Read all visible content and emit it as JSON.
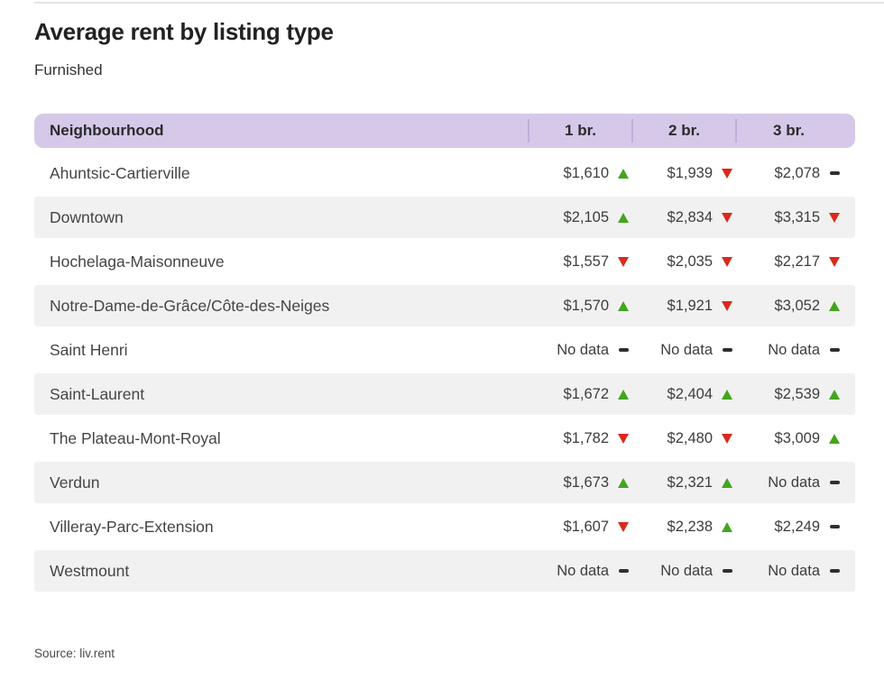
{
  "chart_data": {
    "type": "table",
    "title": "Average rent by listing type",
    "subtitle": "Furnished",
    "columns": [
      "Neighbourhood",
      "1 br.",
      "2 br.",
      "3 br."
    ],
    "rows": [
      {
        "name": "Ahuntsic-Cartierville",
        "cells": [
          {
            "text": "$1,610",
            "value": 1610,
            "trend": "up"
          },
          {
            "text": "$1,939",
            "value": 1939,
            "trend": "down"
          },
          {
            "text": "$2,078",
            "value": 2078,
            "trend": "flat"
          }
        ]
      },
      {
        "name": "Downtown",
        "cells": [
          {
            "text": "$2,105",
            "value": 2105,
            "trend": "up"
          },
          {
            "text": "$2,834",
            "value": 2834,
            "trend": "down"
          },
          {
            "text": "$3,315",
            "value": 3315,
            "trend": "down"
          }
        ]
      },
      {
        "name": "Hochelaga-Maisonneuve",
        "cells": [
          {
            "text": "$1,557",
            "value": 1557,
            "trend": "down"
          },
          {
            "text": "$2,035",
            "value": 2035,
            "trend": "down"
          },
          {
            "text": "$2,217",
            "value": 2217,
            "trend": "down"
          }
        ]
      },
      {
        "name": "Notre-Dame-de-Grâce/Côte-des-Neiges",
        "cells": [
          {
            "text": "$1,570",
            "value": 1570,
            "trend": "up"
          },
          {
            "text": "$1,921",
            "value": 1921,
            "trend": "down"
          },
          {
            "text": "$3,052",
            "value": 3052,
            "trend": "up"
          }
        ]
      },
      {
        "name": "Saint Henri",
        "cells": [
          {
            "text": "No data",
            "value": null,
            "trend": "flat"
          },
          {
            "text": "No data",
            "value": null,
            "trend": "flat"
          },
          {
            "text": "No data",
            "value": null,
            "trend": "flat"
          }
        ]
      },
      {
        "name": "Saint-Laurent",
        "cells": [
          {
            "text": "$1,672",
            "value": 1672,
            "trend": "up"
          },
          {
            "text": "$2,404",
            "value": 2404,
            "trend": "up"
          },
          {
            "text": "$2,539",
            "value": 2539,
            "trend": "up"
          }
        ]
      },
      {
        "name": "The Plateau-Mont-Royal",
        "cells": [
          {
            "text": "$1,782",
            "value": 1782,
            "trend": "down"
          },
          {
            "text": "$2,480",
            "value": 2480,
            "trend": "down"
          },
          {
            "text": "$3,009",
            "value": 3009,
            "trend": "up"
          }
        ]
      },
      {
        "name": "Verdun",
        "cells": [
          {
            "text": "$1,673",
            "value": 1673,
            "trend": "up"
          },
          {
            "text": "$2,321",
            "value": 2321,
            "trend": "up"
          },
          {
            "text": "No data",
            "value": null,
            "trend": "flat"
          }
        ]
      },
      {
        "name": "Villeray-Parc-Extension",
        "cells": [
          {
            "text": "$1,607",
            "value": 1607,
            "trend": "down"
          },
          {
            "text": "$2,238",
            "value": 2238,
            "trend": "up"
          },
          {
            "text": "$2,249",
            "value": 2249,
            "trend": "flat"
          }
        ]
      },
      {
        "name": "Westmount",
        "cells": [
          {
            "text": "No data",
            "value": null,
            "trend": "flat"
          },
          {
            "text": "No data",
            "value": null,
            "trend": "flat"
          },
          {
            "text": "No data",
            "value": null,
            "trend": "flat"
          }
        ]
      }
    ],
    "source": "Source: liv.rent",
    "layout": {
      "legend": "none",
      "grid": "off",
      "row_striping": "alternate-gray"
    }
  },
  "colors": {
    "header_bg": "#d5c8e8",
    "header_divider": "#bfaedb",
    "row_alt_bg": "#f1f1f1",
    "trend_up": "#43a51e",
    "trend_down": "#d9291c",
    "trend_flat": "#2f2f2f",
    "top_rule": "#e3e3e3"
  }
}
